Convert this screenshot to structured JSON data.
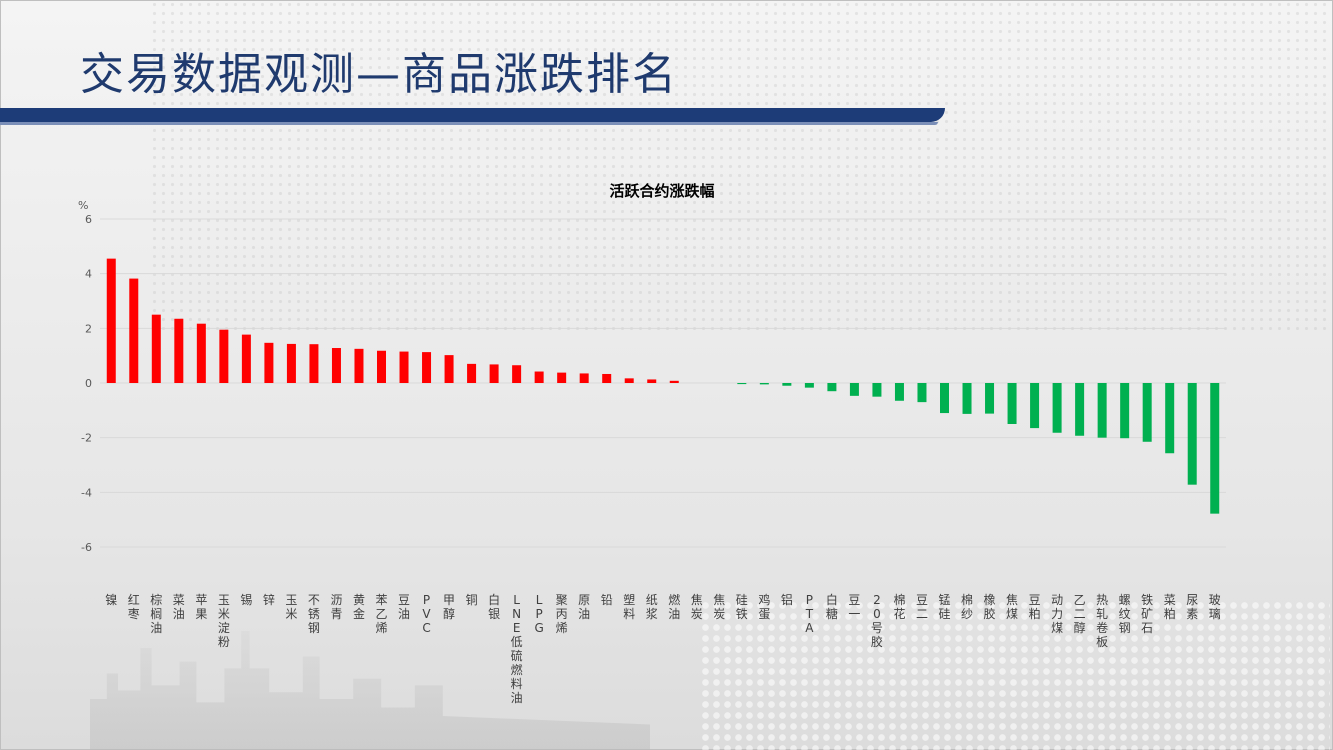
{
  "slide": {
    "title": "交易数据观测—商品涨跌排名",
    "bar_color": "#1d3c78",
    "positive_color": "#ff0000",
    "negative_color": "#00b050"
  },
  "chart_data": {
    "type": "bar",
    "title": "活跃合约涨跌幅",
    "ylabel": "%",
    "xlabel": "",
    "ylim": [
      -6,
      6
    ],
    "yticks": [
      6,
      4,
      2,
      0,
      -2,
      -4,
      -6
    ],
    "grid": true,
    "categories": [
      "镍",
      "红枣",
      "棕榈油",
      "菜油",
      "苹果",
      "玉米淀粉",
      "锡",
      "锌",
      "玉米",
      "不锈钢",
      "沥青",
      "黄金",
      "苯乙烯",
      "豆油",
      "PVC",
      "甲醇",
      "铜",
      "白银",
      "LNE低硫燃料油",
      "LPG",
      "聚丙烯",
      "原油",
      "铅",
      "塑料",
      "纸浆",
      "燃油",
      "焦炭",
      "焦炭",
      "硅铁",
      "鸡蛋",
      "铝",
      "PTA",
      "白糖",
      "豆一",
      "20号胶",
      "棉花",
      "豆二",
      "锰硅",
      "棉纱",
      "橡胶",
      "焦煤",
      "豆粕",
      "动力煤",
      "乙二醇",
      "热轧卷板",
      "螺纹钢",
      "铁矿石",
      "菜粕",
      "尿素",
      "玻璃"
    ],
    "values": [
      4.55,
      3.82,
      2.5,
      2.35,
      2.17,
      1.95,
      1.77,
      1.47,
      1.43,
      1.42,
      1.28,
      1.25,
      1.18,
      1.15,
      1.13,
      1.02,
      0.7,
      0.68,
      0.65,
      0.42,
      0.38,
      0.35,
      0.33,
      0.17,
      0.13,
      0.08,
      0.0,
      0.0,
      -0.04,
      -0.05,
      -0.1,
      -0.17,
      -0.3,
      -0.47,
      -0.5,
      -0.65,
      -0.7,
      -1.1,
      -1.13,
      -1.12,
      -1.5,
      -1.65,
      -1.82,
      -1.93,
      -2.0,
      -2.02,
      -2.15,
      -2.57,
      -3.72,
      -4.78
    ]
  }
}
